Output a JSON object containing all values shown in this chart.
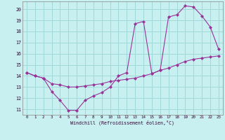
{
  "xlabel": "Windchill (Refroidissement éolien,°C)",
  "bg_color": "#c8f0f0",
  "grid_color": "#a0d8d8",
  "line_color": "#993399",
  "xlim": [
    -0.5,
    23.5
  ],
  "ylim": [
    10.5,
    20.7
  ],
  "xticks": [
    0,
    1,
    2,
    3,
    4,
    5,
    6,
    7,
    8,
    9,
    10,
    11,
    12,
    13,
    14,
    15,
    16,
    17,
    18,
    19,
    20,
    21,
    22,
    23
  ],
  "yticks": [
    11,
    12,
    13,
    14,
    15,
    16,
    17,
    18,
    19,
    20
  ],
  "series1_x": [
    0,
    1,
    2,
    3,
    4,
    5,
    6,
    7,
    8,
    9,
    10,
    11,
    12,
    13,
    14,
    15,
    16,
    17,
    18,
    19,
    20,
    21,
    22,
    23
  ],
  "series1_y": [
    14.3,
    14.0,
    13.8,
    12.6,
    11.8,
    10.9,
    10.9,
    11.8,
    12.2,
    12.5,
    13.0,
    14.0,
    14.3,
    18.7,
    18.9,
    14.2,
    14.5,
    19.3,
    19.5,
    20.3,
    20.2,
    19.4,
    18.4,
    16.4
  ],
  "series2_x": [
    0,
    1,
    2,
    3,
    4,
    5,
    6,
    7,
    8,
    9,
    10,
    11,
    12,
    13,
    14,
    15,
    16,
    17,
    18,
    19,
    20,
    21,
    22,
    23
  ],
  "series2_y": [
    14.3,
    14.0,
    13.8,
    13.3,
    13.2,
    13.0,
    13.0,
    13.1,
    13.2,
    13.3,
    13.5,
    13.6,
    13.7,
    13.8,
    14.0,
    14.2,
    14.5,
    14.7,
    15.0,
    15.3,
    15.5,
    15.6,
    15.7,
    15.8
  ]
}
